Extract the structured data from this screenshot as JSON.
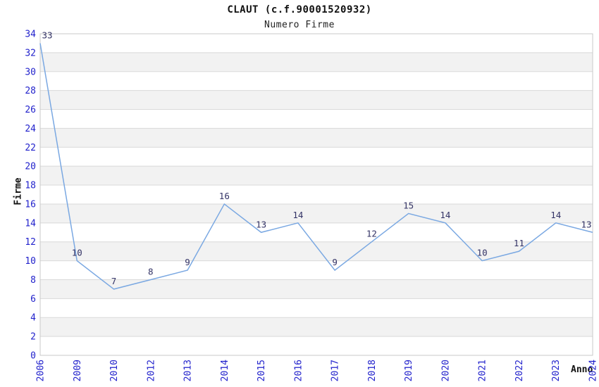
{
  "chart_data": {
    "type": "line",
    "title": "CLAUT (c.f.90001520932)",
    "subtitle": "Numero Firme",
    "xlabel": "Anno",
    "ylabel": "Firme",
    "categories": [
      "2006",
      "2009",
      "2010",
      "2012",
      "2013",
      "2014",
      "2015",
      "2016",
      "2017",
      "2018",
      "2019",
      "2020",
      "2021",
      "2022",
      "2023",
      "2024"
    ],
    "values": [
      33,
      10,
      7,
      8,
      9,
      16,
      13,
      14,
      9,
      12,
      15,
      14,
      10,
      11,
      14,
      13
    ],
    "ylim": [
      0,
      34
    ],
    "ytick_step": 2,
    "grid": "horizontal-only",
    "bands": "alternating-horizontal",
    "legend": "none",
    "point_labels": true,
    "colors": {
      "line": "#7aa8e2",
      "tick_label": "#2222cc",
      "point_label": "#333366",
      "grid_line": "#d9d9d9",
      "band_fill": "#f2f2f2",
      "plot_border": "#c9c9c9",
      "background": "#ffffff"
    }
  }
}
